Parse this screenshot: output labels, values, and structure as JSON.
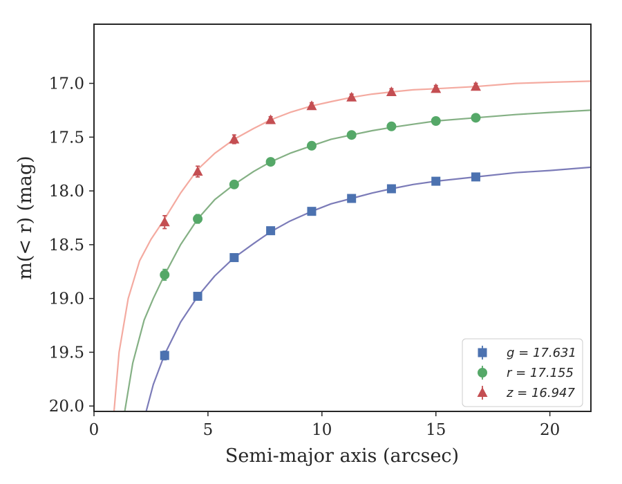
{
  "chart_data": {
    "type": "scatter",
    "title": "",
    "xlabel": "Semi-major axis (arcsec)",
    "ylabel": "m(< r) (mag)",
    "xlim": [
      0,
      21.8
    ],
    "ylim": [
      20.05,
      16.45
    ],
    "y_inverted": true,
    "grid": false,
    "legend_position": "bottom-right",
    "x_ticks": [
      "0",
      "5",
      "10",
      "15",
      "20"
    ],
    "x_tick_values": [
      0,
      5,
      10,
      15,
      20
    ],
    "y_ticks": [
      "17.0",
      "17.5",
      "18.0",
      "18.5",
      "19.0",
      "19.5",
      "20.0"
    ],
    "y_tick_values": [
      17.0,
      17.5,
      18.0,
      18.5,
      19.0,
      19.5,
      20.0
    ],
    "x": [
      3.1,
      4.55,
      6.15,
      7.75,
      9.55,
      11.3,
      13.05,
      15.0,
      16.75
    ],
    "series": [
      {
        "name": "g = 17.631",
        "band": "g",
        "value": "17.631",
        "marker": "square",
        "point_color": "#4c72b0",
        "curve_color": "#7b7bb8",
        "values": [
          19.53,
          18.98,
          18.62,
          18.37,
          18.19,
          18.07,
          17.98,
          17.91,
          17.87
        ],
        "errors": [
          0.04,
          0.03,
          0.02,
          0.02,
          0.02,
          0.02,
          0.02,
          0.02,
          0.02
        ],
        "fit": [
          [
            2.29,
            20.05
          ],
          [
            2.6,
            19.8
          ],
          [
            3.1,
            19.52
          ],
          [
            3.8,
            19.22
          ],
          [
            4.55,
            18.98
          ],
          [
            5.3,
            18.79
          ],
          [
            6.15,
            18.62
          ],
          [
            7.0,
            18.49
          ],
          [
            7.75,
            18.38
          ],
          [
            8.6,
            18.28
          ],
          [
            9.55,
            18.19
          ],
          [
            10.4,
            18.12
          ],
          [
            11.3,
            18.07
          ],
          [
            12.2,
            18.02
          ],
          [
            13.05,
            17.98
          ],
          [
            14.0,
            17.94
          ],
          [
            15.0,
            17.91
          ],
          [
            16.75,
            17.87
          ],
          [
            18.5,
            17.83
          ],
          [
            20.0,
            17.81
          ],
          [
            21.8,
            17.78
          ]
        ]
      },
      {
        "name": "r = 17.155",
        "band": "r",
        "value": "17.155",
        "marker": "circle",
        "point_color": "#55a868",
        "curve_color": "#84b084",
        "values": [
          18.78,
          18.26,
          17.94,
          17.73,
          17.58,
          17.48,
          17.4,
          17.35,
          17.32
        ],
        "errors": [
          0.05,
          0.04,
          0.03,
          0.02,
          0.02,
          0.02,
          0.02,
          0.02,
          0.02
        ],
        "fit": [
          [
            1.35,
            20.05
          ],
          [
            1.7,
            19.6
          ],
          [
            2.2,
            19.2
          ],
          [
            2.6,
            19.0
          ],
          [
            3.1,
            18.78
          ],
          [
            3.8,
            18.5
          ],
          [
            4.55,
            18.26
          ],
          [
            5.3,
            18.08
          ],
          [
            6.15,
            17.94
          ],
          [
            7.0,
            17.82
          ],
          [
            7.75,
            17.73
          ],
          [
            8.6,
            17.65
          ],
          [
            9.55,
            17.58
          ],
          [
            10.4,
            17.52
          ],
          [
            11.3,
            17.48
          ],
          [
            12.2,
            17.44
          ],
          [
            13.05,
            17.41
          ],
          [
            14.0,
            17.38
          ],
          [
            15.0,
            17.35
          ],
          [
            16.75,
            17.32
          ],
          [
            18.5,
            17.29
          ],
          [
            20.0,
            17.27
          ],
          [
            21.8,
            17.25
          ]
        ]
      },
      {
        "name": "z = 16.947",
        "band": "z",
        "value": "16.947",
        "marker": "triangle",
        "point_color": "#c44e52",
        "curve_color": "#f4aaa0",
        "values": [
          18.29,
          17.82,
          17.52,
          17.34,
          17.21,
          17.13,
          17.08,
          17.05,
          17.03
        ],
        "errors": [
          0.06,
          0.05,
          0.04,
          0.03,
          0.03,
          0.03,
          0.03,
          0.03,
          0.03
        ],
        "fit": [
          [
            0.88,
            20.05
          ],
          [
            1.1,
            19.5
          ],
          [
            1.5,
            19.0
          ],
          [
            2.0,
            18.65
          ],
          [
            2.5,
            18.45
          ],
          [
            3.1,
            18.26
          ],
          [
            3.8,
            18.02
          ],
          [
            4.55,
            17.8
          ],
          [
            5.3,
            17.65
          ],
          [
            6.15,
            17.52
          ],
          [
            7.0,
            17.42
          ],
          [
            7.75,
            17.34
          ],
          [
            8.6,
            17.27
          ],
          [
            9.55,
            17.21
          ],
          [
            10.4,
            17.17
          ],
          [
            11.3,
            17.13
          ],
          [
            12.2,
            17.1
          ],
          [
            13.05,
            17.08
          ],
          [
            14.0,
            17.06
          ],
          [
            15.0,
            17.05
          ],
          [
            16.75,
            17.03
          ],
          [
            18.5,
            17.0
          ],
          [
            20.0,
            16.99
          ],
          [
            21.8,
            16.98
          ]
        ]
      }
    ]
  }
}
